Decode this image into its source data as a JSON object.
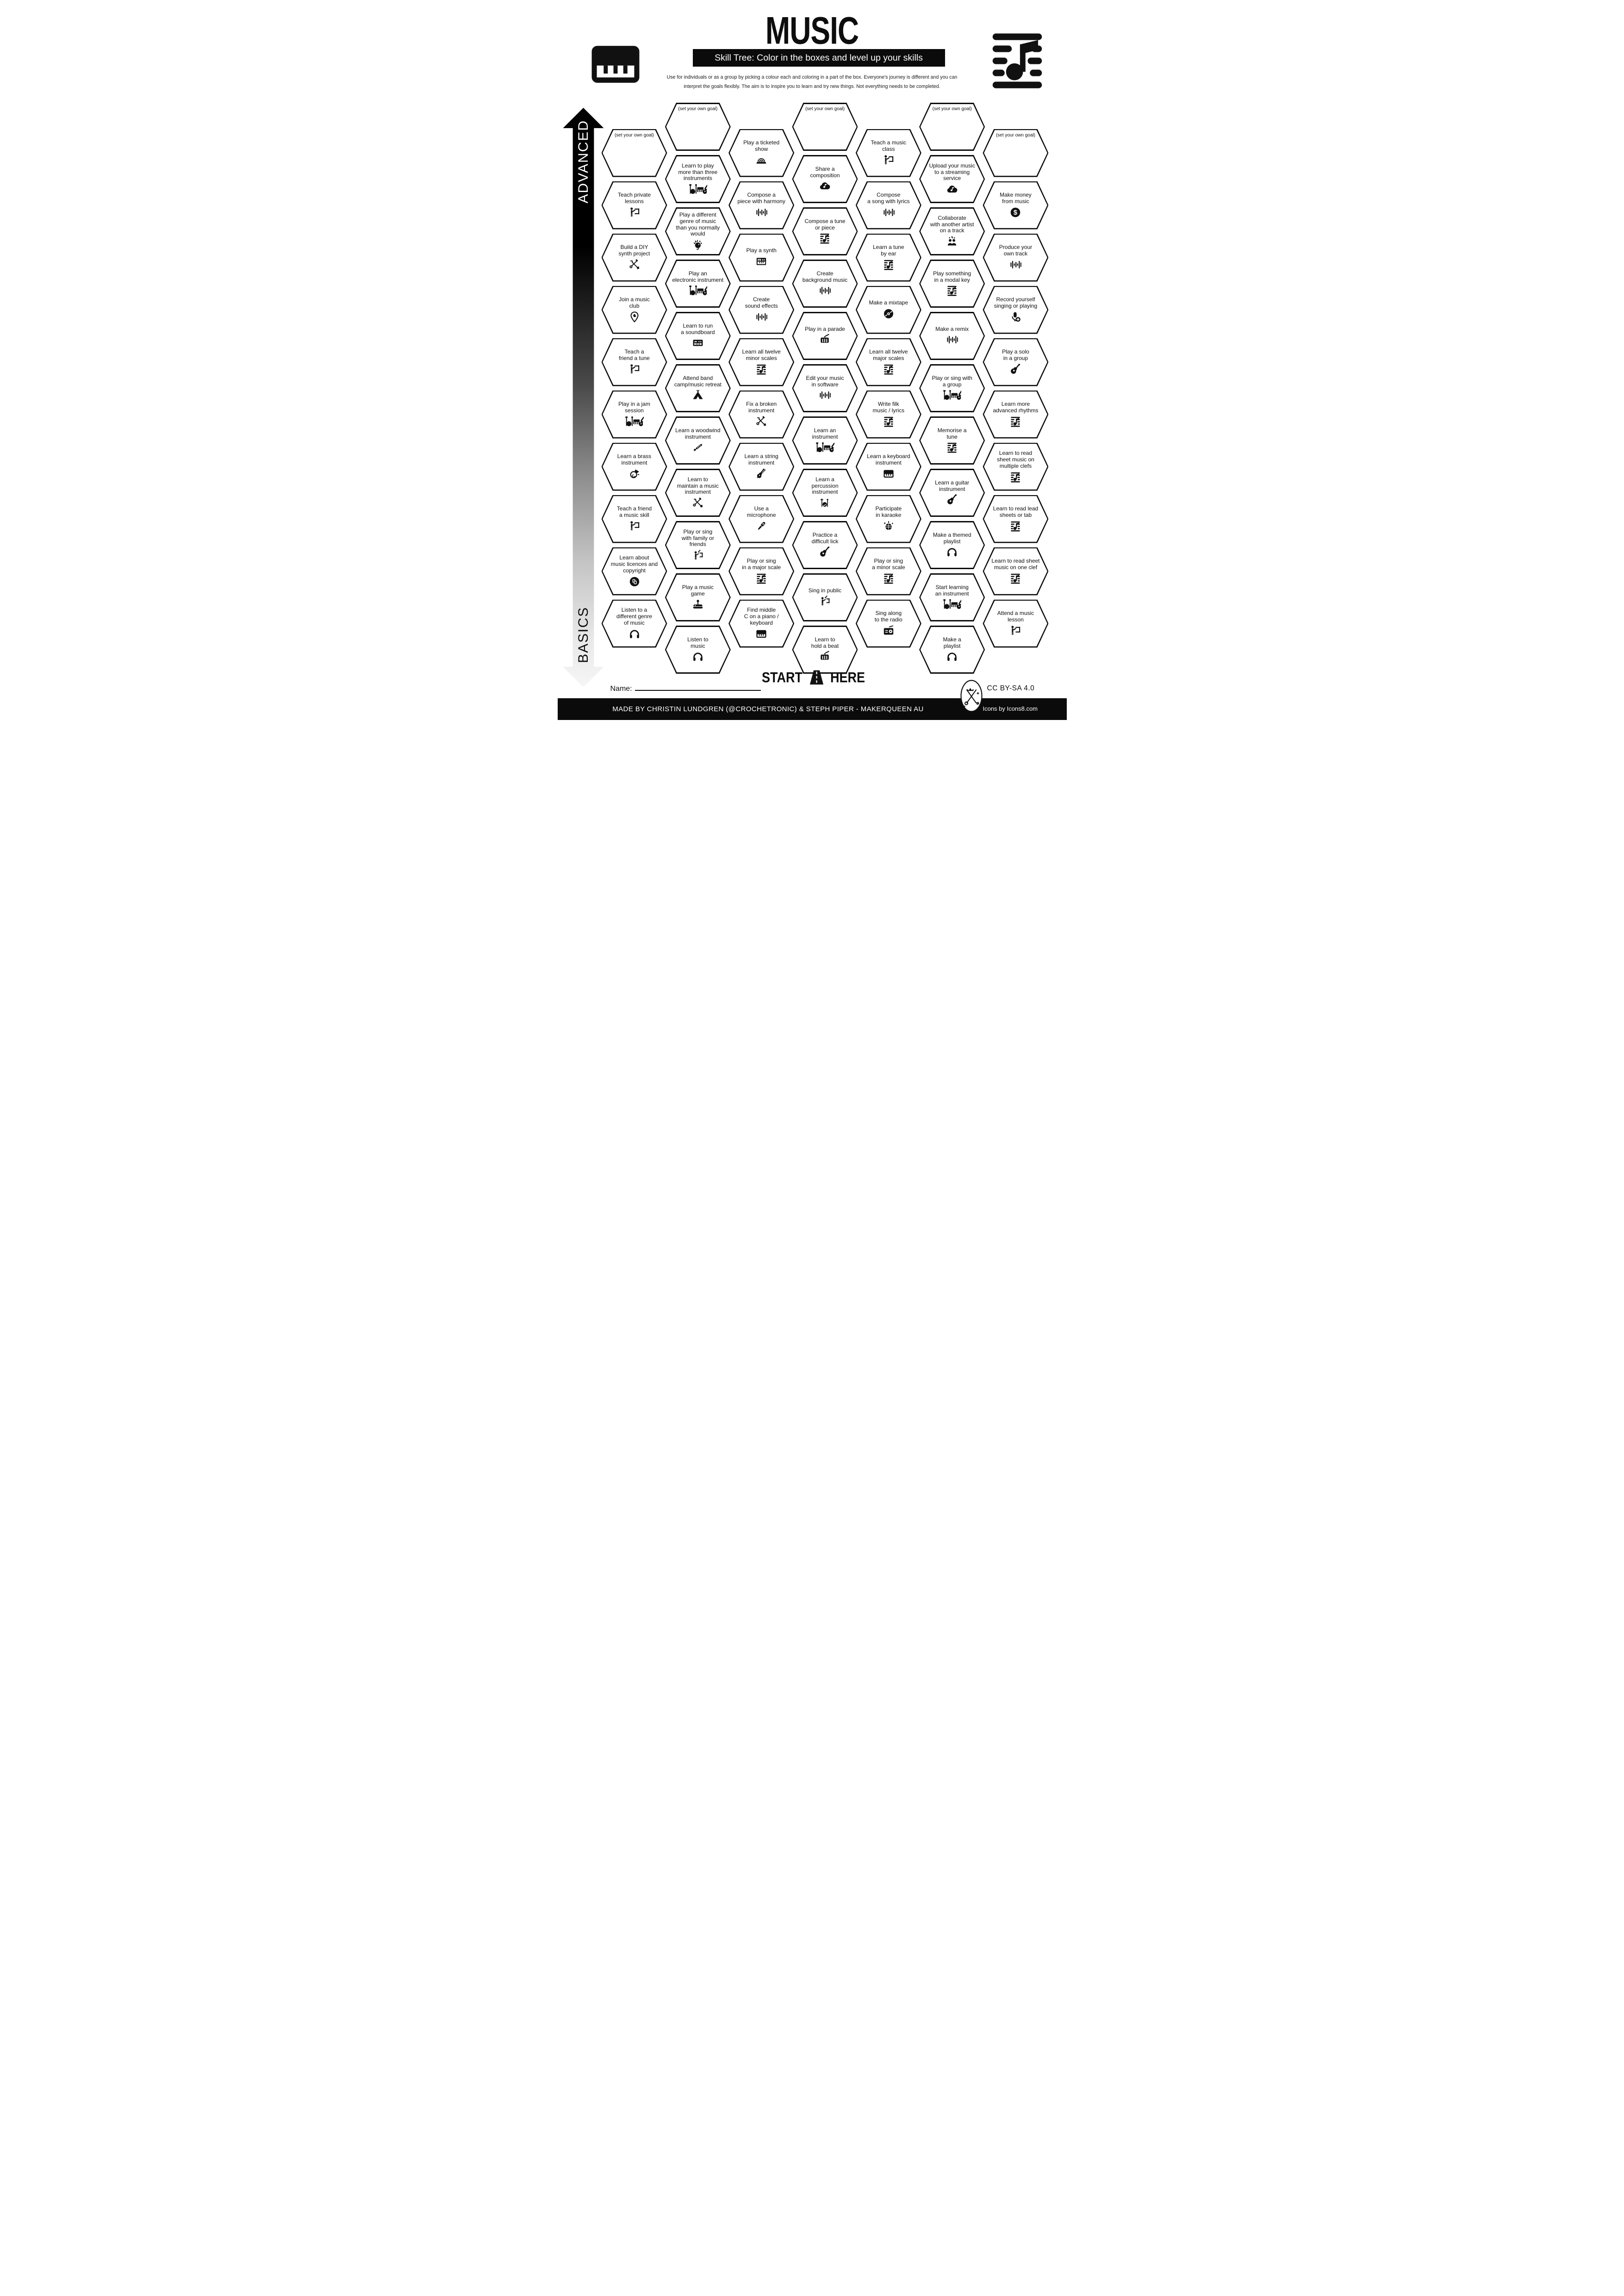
{
  "header": {
    "title": "MUSIC",
    "subtitle": "Skill Tree:  Color in the boxes and level up your skills",
    "description_line1": "Use for individuals or as a group by picking a colour each and coloring in a part of the box.  Everyone's journey is different and you can",
    "description_line2": "interpret the goals flexibly.  The aim is to inspire you to learn and try new things. Not everything needs to be completed.",
    "left_icon": "piano-icon",
    "right_icon": "sheet-music-icon"
  },
  "axis": {
    "top_label": "ADVANCED",
    "bottom_label": "BASICS"
  },
  "start": {
    "left": "START",
    "right": "HERE",
    "icon": "road-icon"
  },
  "footer": {
    "name_label": "Name:",
    "license": "CC BY-SA 4.0",
    "credit": "MADE BY CHRISTIN LUNDGREN (@CROCHETRONIC) & STEPH PIPER  -  MAKERQUEEN AU",
    "icons_credit": "Icons by Icons8.com",
    "logo": "makerqueen-logo"
  },
  "grid": {
    "cells": [
      {
        "col": 0,
        "row": 0,
        "label": "(set your own goal)",
        "icon": null,
        "goal": true
      },
      {
        "col": 0,
        "row": 1,
        "label": "Teach private\nlessons",
        "icon": "teach"
      },
      {
        "col": 0,
        "row": 2,
        "label": "Build a DIY\nsynth project",
        "icon": "tools"
      },
      {
        "col": 0,
        "row": 3,
        "label": "Join a music\nclub",
        "icon": "pin"
      },
      {
        "col": 0,
        "row": 4,
        "label": "Teach a\nfriend a tune",
        "icon": "teach"
      },
      {
        "col": 0,
        "row": 5,
        "label": "Play in a jam\nsession",
        "icon": "band"
      },
      {
        "col": 0,
        "row": 6,
        "label": "Learn a brass\ninstrument",
        "icon": "horn"
      },
      {
        "col": 0,
        "row": 7,
        "label": "Teach a friend\na music skill",
        "icon": "teach"
      },
      {
        "col": 0,
        "row": 8,
        "label": "Learn about\nmusic licences and\ncopyright",
        "icon": "copyright"
      },
      {
        "col": 0,
        "row": 9,
        "label": "Listen to a\ndifferent genre\nof music",
        "icon": "headphones"
      },
      {
        "col": 1,
        "row": 0,
        "label": "(set your own goal)",
        "icon": null,
        "goal": true
      },
      {
        "col": 1,
        "row": 1,
        "label": "Learn to play\nmore than three\ninstruments",
        "icon": "band"
      },
      {
        "col": 1,
        "row": 2,
        "label": "Play a different\ngenre of music\nthan you normally would",
        "icon": "punk"
      },
      {
        "col": 1,
        "row": 3,
        "label": "Play an\nelectronic instrument",
        "icon": "band"
      },
      {
        "col": 1,
        "row": 4,
        "label": "Learn to run\na soundboard",
        "icon": "soundboard"
      },
      {
        "col": 1,
        "row": 5,
        "label": "Attend band\ncamp/music retreat",
        "icon": "tent"
      },
      {
        "col": 1,
        "row": 6,
        "label": "Learn a woodwind\ninstrument",
        "icon": "flute"
      },
      {
        "col": 1,
        "row": 7,
        "label": "Learn to\nmaintain a music\ninstrument",
        "icon": "tools"
      },
      {
        "col": 1,
        "row": 8,
        "label": "Play or sing\nwith family or\nfriends",
        "icon": "sing"
      },
      {
        "col": 1,
        "row": 9,
        "label": "Play a music\ngame",
        "icon": "joystick"
      },
      {
        "col": 1,
        "row": 10,
        "label": "Listen to\nmusic",
        "icon": "headphones"
      },
      {
        "col": 2,
        "row": 0,
        "label": "Play a ticketed\nshow",
        "icon": "stage"
      },
      {
        "col": 2,
        "row": 1,
        "label": "Compose a\npiece with harmony",
        "icon": "waveform"
      },
      {
        "col": 2,
        "row": 2,
        "label": "Play a synth",
        "icon": "synth"
      },
      {
        "col": 2,
        "row": 3,
        "label": "Create\nsound effects",
        "icon": "waveform"
      },
      {
        "col": 2,
        "row": 4,
        "label": "Learn all twelve\nminor scales",
        "icon": "sheet"
      },
      {
        "col": 2,
        "row": 5,
        "label": "Fix a broken\ninstrument",
        "icon": "tools"
      },
      {
        "col": 2,
        "row": 6,
        "label": "Learn a string\ninstrument",
        "icon": "violin"
      },
      {
        "col": 2,
        "row": 7,
        "label": "Use a\nmicrophone",
        "icon": "mic"
      },
      {
        "col": 2,
        "row": 8,
        "label": "Play or sing\nin a major scale",
        "icon": "sheet"
      },
      {
        "col": 2,
        "row": 9,
        "label": "Find middle\nC on a piano /\nkeyboard",
        "icon": "keyboard"
      },
      {
        "col": 3,
        "row": 0,
        "label": "(set your own goal)",
        "icon": null,
        "goal": true
      },
      {
        "col": 3,
        "row": 1,
        "label": "Share a\ncomposition",
        "icon": "cloud"
      },
      {
        "col": 3,
        "row": 2,
        "label": "Compose a tune\nor piece",
        "icon": "sheet"
      },
      {
        "col": 3,
        "row": 3,
        "label": "Create\nbackground music",
        "icon": "waveform"
      },
      {
        "col": 3,
        "row": 4,
        "label": "Play in a parade",
        "icon": "drum"
      },
      {
        "col": 3,
        "row": 5,
        "label": "Edit your music\nin software",
        "icon": "waveform"
      },
      {
        "col": 3,
        "row": 6,
        "label": "Learn an\ninstrument",
        "icon": "band"
      },
      {
        "col": 3,
        "row": 7,
        "label": "Learn a\npercussion\ninstrument",
        "icon": "drumkit"
      },
      {
        "col": 3,
        "row": 8,
        "label": "Practice a\ndifficult lick",
        "icon": "guitar"
      },
      {
        "col": 3,
        "row": 9,
        "label": "Sing in public",
        "icon": "sing"
      },
      {
        "col": 3,
        "row": 10,
        "label": "Learn to\nhold a beat",
        "icon": "drum"
      },
      {
        "col": 4,
        "row": 0,
        "label": "Teach a music\nclass",
        "icon": "teach"
      },
      {
        "col": 4,
        "row": 1,
        "label": "Compose\na song with lyrics",
        "icon": "waveform"
      },
      {
        "col": 4,
        "row": 2,
        "label": "Learn a tune\nby ear",
        "icon": "sheet"
      },
      {
        "col": 4,
        "row": 3,
        "label": "Make a mixtape",
        "icon": "vinyl"
      },
      {
        "col": 4,
        "row": 4,
        "label": "Learn all twelve\nmajor scales",
        "icon": "sheet"
      },
      {
        "col": 4,
        "row": 5,
        "label": "Write filk\nmusic / lyrics",
        "icon": "sheet"
      },
      {
        "col": 4,
        "row": 6,
        "label": "Learn a keyboard\ninstrument",
        "icon": "keyboard"
      },
      {
        "col": 4,
        "row": 7,
        "label": "Participate\nin karaoke",
        "icon": "disco"
      },
      {
        "col": 4,
        "row": 8,
        "label": "Play or sing\na minor scale",
        "icon": "sheet"
      },
      {
        "col": 4,
        "row": 9,
        "label": "Sing along\nto the radio",
        "icon": "radio"
      },
      {
        "col": 5,
        "row": 0,
        "label": "(set your own goal)",
        "icon": null,
        "goal": true
      },
      {
        "col": 5,
        "row": 1,
        "label": "Upload your music\nto a streaming\nservice",
        "icon": "cloud"
      },
      {
        "col": 5,
        "row": 2,
        "label": "Collaborate\nwith another artist\non a track",
        "icon": "collab"
      },
      {
        "col": 5,
        "row": 3,
        "label": "Play something\nin a modal key",
        "icon": "sheet"
      },
      {
        "col": 5,
        "row": 4,
        "label": "Make a remix",
        "icon": "waveform"
      },
      {
        "col": 5,
        "row": 5,
        "label": "Play or sing with\na group",
        "icon": "band"
      },
      {
        "col": 5,
        "row": 6,
        "label": "Memorise a\ntune",
        "icon": "sheet"
      },
      {
        "col": 5,
        "row": 7,
        "label": "Learn a guitar\ninstrument",
        "icon": "guitar"
      },
      {
        "col": 5,
        "row": 8,
        "label": "Make a themed\nplaylist",
        "icon": "headphones"
      },
      {
        "col": 5,
        "row": 9,
        "label": "Start learning\nan instrument",
        "icon": "band"
      },
      {
        "col": 5,
        "row": 10,
        "label": "Make a\nplaylist",
        "icon": "headphones"
      },
      {
        "col": 6,
        "row": 0,
        "label": "(set your own goal)",
        "icon": null,
        "goal": true
      },
      {
        "col": 6,
        "row": 1,
        "label": "Make money\nfrom music",
        "icon": "dollar"
      },
      {
        "col": 6,
        "row": 2,
        "label": "Produce your\nown track",
        "icon": "waveform"
      },
      {
        "col": 6,
        "row": 3,
        "label": "Record yourself\nsinging or playing",
        "icon": "micplus"
      },
      {
        "col": 6,
        "row": 4,
        "label": "Play a solo\nin a group",
        "icon": "guitar"
      },
      {
        "col": 6,
        "row": 5,
        "label": "Learn more\nadvanced rhythms",
        "icon": "sheet"
      },
      {
        "col": 6,
        "row": 6,
        "label": "Learn to read\nsheet music on\nmultiple clefs",
        "icon": "sheet"
      },
      {
        "col": 6,
        "row": 7,
        "label": "Learn to read lead\nsheets or tab",
        "icon": "sheet"
      },
      {
        "col": 6,
        "row": 8,
        "label": "Learn to read sheet\nmusic on one clef",
        "icon": "sheet"
      },
      {
        "col": 6,
        "row": 9,
        "label": "Attend a music\nlesson",
        "icon": "teach"
      }
    ]
  }
}
